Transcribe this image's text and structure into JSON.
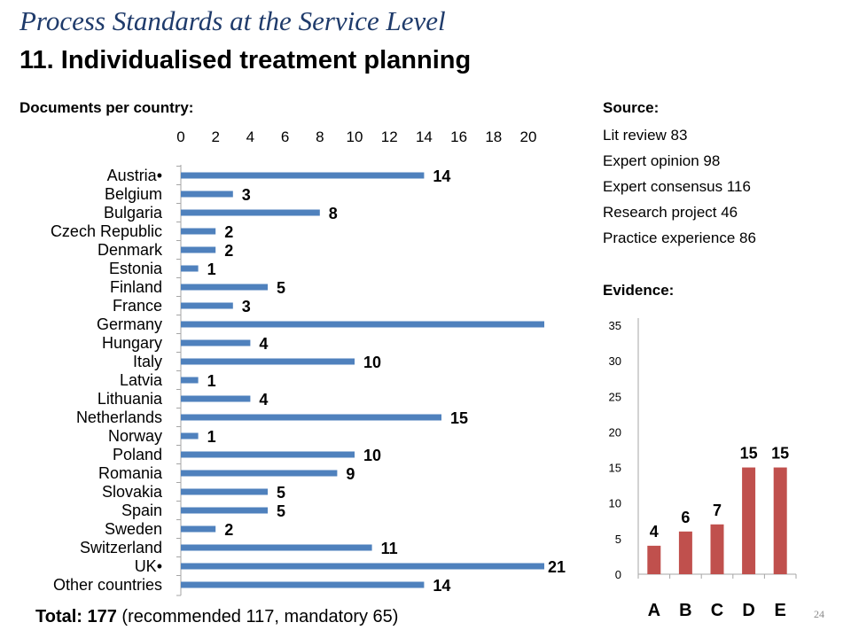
{
  "slide": {
    "title_main": "Process Standards at the Service Level",
    "title_sub": "11. Individualised treatment planning",
    "documents_label": "Documents per country:",
    "source_label": "Source:",
    "sources": [
      "Lit review 83",
      "Expert opinion 98",
      "Expert consensus 116",
      "Research project 46",
      "Practice experience 86"
    ],
    "evidence_label": "Evidence:",
    "total_bold": "Total: 177",
    "total_rest": " (recommended 117, mandatory 65)",
    "page_number": "24"
  },
  "colors": {
    "bar_blue": "#4f81bd",
    "bar_red": "#c0504d",
    "title_blue": "#1f3b6b"
  },
  "chart_data": [
    {
      "type": "bar",
      "orientation": "horizontal",
      "categories": [
        "Austria•",
        "Belgium",
        "Bulgaria",
        "Czech Republic",
        "Denmark",
        "Estonia",
        "Finland",
        "France",
        "Germany",
        "Hungary",
        "Italy",
        "Latvia",
        "Lithuania",
        "Netherlands",
        "Norway",
        "Poland",
        "Romania",
        "Slovakia",
        "Spain",
        "Sweden",
        "Switzerland",
        "UK•",
        "Other countries"
      ],
      "values": [
        14,
        3,
        8,
        2,
        2,
        1,
        5,
        3,
        21,
        4,
        10,
        1,
        4,
        15,
        1,
        10,
        9,
        5,
        5,
        2,
        11,
        21,
        14
      ],
      "data_labels": [
        "14",
        "3",
        "8",
        "2",
        "2",
        "1",
        "5",
        "3",
        "",
        "4",
        "10",
        "1",
        "4",
        "15",
        "1",
        "10",
        "9",
        "5",
        "5",
        "2",
        "11",
        "21",
        "14"
      ],
      "ticks": [
        "0",
        "2",
        "4",
        "6",
        "8",
        "10",
        "12",
        "14",
        "16",
        "18",
        "20"
      ],
      "xlim": [
        0,
        20.8
      ],
      "grid": false,
      "tick_position": "top"
    },
    {
      "type": "bar",
      "categories": [
        "A",
        "B",
        "C",
        "D",
        "E"
      ],
      "values": [
        4,
        6,
        7,
        15,
        15
      ],
      "data_labels": [
        "4",
        "6",
        "7",
        "15",
        "15"
      ],
      "ticks": [
        "0",
        "5",
        "10",
        "15",
        "20",
        "25",
        "30",
        "35"
      ],
      "ylim": [
        0,
        35
      ],
      "grid": false
    }
  ]
}
